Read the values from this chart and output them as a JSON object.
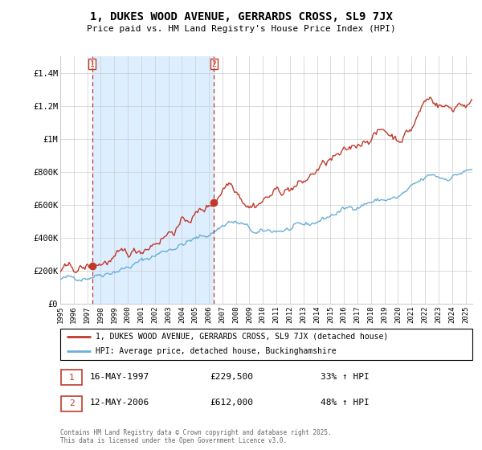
{
  "title": "1, DUKES WOOD AVENUE, GERRARDS CROSS, SL9 7JX",
  "subtitle": "Price paid vs. HM Land Registry's House Price Index (HPI)",
  "legend_line1": "1, DUKES WOOD AVENUE, GERRARDS CROSS, SL9 7JX (detached house)",
  "legend_line2": "HPI: Average price, detached house, Buckinghamshire",
  "footer": "Contains HM Land Registry data © Crown copyright and database right 2025.\nThis data is licensed under the Open Government Licence v3.0.",
  "sale1_date": "16-MAY-1997",
  "sale1_price": "£229,500",
  "sale1_hpi": "33% ↑ HPI",
  "sale2_date": "12-MAY-2006",
  "sale2_price": "£612,000",
  "sale2_hpi": "48% ↑ HPI",
  "sale1_year": 1997.37,
  "sale1_value": 229500,
  "sale2_year": 2006.37,
  "sale2_value": 612000,
  "vline1_x": 1997.37,
  "vline2_x": 2006.37,
  "hpi_color": "#6baed6",
  "price_color": "#c0392b",
  "vline_color": "#c0392b",
  "shade_color": "#ddeeff",
  "background_color": "#ffffff",
  "grid_color": "#cccccc",
  "ylim": [
    0,
    1500000
  ],
  "xlim_start": 1995,
  "xlim_end": 2025.5,
  "yticks": [
    0,
    200000,
    400000,
    600000,
    800000,
    1000000,
    1200000,
    1400000
  ],
  "ytick_labels": [
    "£0",
    "£200K",
    "£400K",
    "£600K",
    "£800K",
    "£1M",
    "£1.2M",
    "£1.4M"
  ],
  "xticks": [
    1995,
    1996,
    1997,
    1998,
    1999,
    2000,
    2001,
    2002,
    2003,
    2004,
    2005,
    2006,
    2007,
    2008,
    2009,
    2010,
    2011,
    2012,
    2013,
    2014,
    2015,
    2016,
    2017,
    2018,
    2019,
    2020,
    2021,
    2022,
    2023,
    2024,
    2025
  ]
}
